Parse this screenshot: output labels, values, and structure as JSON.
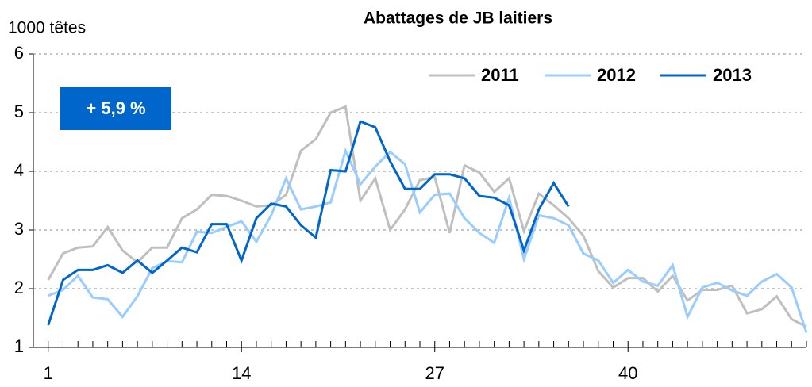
{
  "chart_data": {
    "type": "line",
    "title": "Abattages de JB laitiers",
    "y_axis_label": "1000 têtes",
    "annotation": "+ 5,9 %",
    "annotation_color": "#0066cc",
    "x": [
      1,
      2,
      3,
      4,
      5,
      6,
      7,
      8,
      9,
      10,
      11,
      12,
      13,
      14,
      15,
      16,
      17,
      18,
      19,
      20,
      21,
      22,
      23,
      24,
      25,
      26,
      27,
      28,
      29,
      30,
      31,
      32,
      33,
      34,
      35,
      36,
      37,
      38,
      39,
      40,
      41,
      42,
      43,
      44,
      45,
      46,
      47,
      48,
      49,
      50,
      51,
      52
    ],
    "xlim": [
      0,
      52
    ],
    "xticks": [
      1,
      14,
      27,
      40
    ],
    "ylim": [
      1,
      6
    ],
    "yticks": [
      1,
      2,
      3,
      4,
      5,
      6
    ],
    "grid": true,
    "legend": "top-right",
    "series": [
      {
        "name": "2011",
        "color": "#bfbfbf",
        "values": [
          2.15,
          2.6,
          2.7,
          2.72,
          3.05,
          2.65,
          2.45,
          2.7,
          2.7,
          3.2,
          3.35,
          3.6,
          3.58,
          3.5,
          3.4,
          3.42,
          3.6,
          4.35,
          4.55,
          5.0,
          5.1,
          3.5,
          3.88,
          3.0,
          3.35,
          3.85,
          3.9,
          2.95,
          4.1,
          3.98,
          3.65,
          3.88,
          2.98,
          3.62,
          3.42,
          3.2,
          2.9,
          2.3,
          2.02,
          2.18,
          2.18,
          1.95,
          2.22,
          1.8,
          1.98,
          1.98,
          2.05,
          1.58,
          1.65,
          1.87,
          1.48,
          1.35
        ]
      },
      {
        "name": "2012",
        "color": "#99ccff",
        "values": [
          1.88,
          1.98,
          2.22,
          1.85,
          1.82,
          1.52,
          1.87,
          2.35,
          2.47,
          2.45,
          2.97,
          2.95,
          3.05,
          3.15,
          2.8,
          3.25,
          3.88,
          3.35,
          3.4,
          3.47,
          4.35,
          3.78,
          4.08,
          4.33,
          4.12,
          3.3,
          3.6,
          3.62,
          3.2,
          2.95,
          2.78,
          3.55,
          2.5,
          3.25,
          3.2,
          3.08,
          2.6,
          2.48,
          2.1,
          2.32,
          2.12,
          2.05,
          2.4,
          1.52,
          2.02,
          2.1,
          1.97,
          1.88,
          2.12,
          2.25,
          2.02,
          1.25
        ]
      },
      {
        "name": "2013",
        "color": "#0066cc",
        "values": [
          1.38,
          2.15,
          2.32,
          2.32,
          2.4,
          2.27,
          2.48,
          2.27,
          2.48,
          2.7,
          2.62,
          3.1,
          3.1,
          2.48,
          3.2,
          3.45,
          3.4,
          3.08,
          2.87,
          4.02,
          4.0,
          4.85,
          4.75,
          4.17,
          3.7,
          3.7,
          3.95,
          3.95,
          3.88,
          3.58,
          3.55,
          3.42,
          2.65,
          3.35,
          3.8,
          3.4,
          null,
          null,
          null,
          null,
          null,
          null,
          null,
          null,
          null,
          null,
          null,
          null,
          null,
          null,
          null,
          null
        ]
      }
    ]
  }
}
